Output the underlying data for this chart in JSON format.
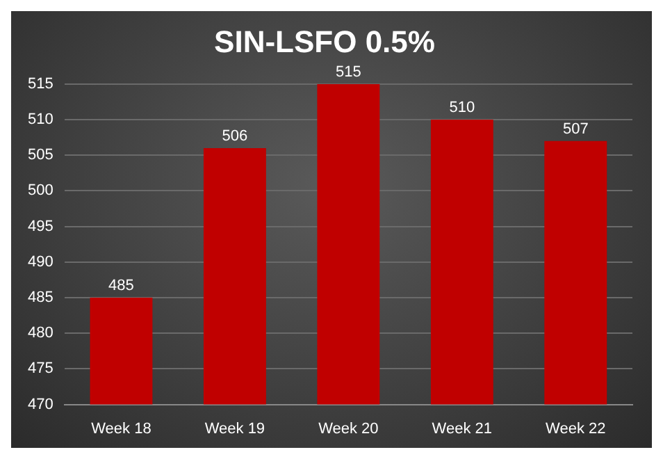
{
  "chart_data": {
    "type": "bar",
    "title": "SIN-LSFO 0.5%",
    "categories": [
      "Week 18",
      "Week 19",
      "Week 20",
      "Week 21",
      "Week 22"
    ],
    "values": [
      485,
      506,
      515,
      510,
      507
    ],
    "color": "#c00000",
    "ylim": [
      470,
      515
    ],
    "yticks": [
      470,
      475,
      480,
      485,
      490,
      495,
      500,
      505,
      510,
      515
    ],
    "grid": "y",
    "data_labels": true,
    "legend": false
  }
}
